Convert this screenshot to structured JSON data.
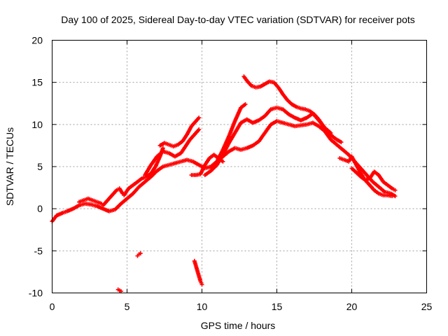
{
  "chart_data": {
    "type": "scatter",
    "title": "Day 100 of 2025, Sidereal Day-to-day VTEC variation (SDTVAR) for receiver pots",
    "xlabel": "GPS time / hours",
    "ylabel": "SDTVAR / TECUs",
    "xlim": [
      0,
      25
    ],
    "ylim": [
      -10,
      20
    ],
    "x_ticks": [
      "0",
      "5",
      "10",
      "15",
      "20",
      "25"
    ],
    "y_ticks": [
      "-10",
      "-5",
      "0",
      "5",
      "10",
      "15",
      "20"
    ],
    "grid": true,
    "marker": "+",
    "color": "#ff0000",
    "series": [
      {
        "name": "track-main-low",
        "points": [
          [
            0.0,
            -1.5
          ],
          [
            0.3,
            -0.8
          ],
          [
            0.7,
            -0.5
          ],
          [
            1.0,
            -0.3
          ],
          [
            1.4,
            0.0
          ],
          [
            1.8,
            0.4
          ],
          [
            2.2,
            0.6
          ],
          [
            2.6,
            0.5
          ],
          [
            3.0,
            0.3
          ],
          [
            3.4,
            0.0
          ],
          [
            3.8,
            -0.3
          ],
          [
            4.2,
            -0.1
          ],
          [
            4.6,
            0.6
          ],
          [
            5.0,
            1.2
          ],
          [
            5.4,
            1.8
          ],
          [
            5.8,
            2.6
          ],
          [
            6.2,
            3.2
          ],
          [
            6.6,
            3.8
          ],
          [
            7.0,
            4.5
          ],
          [
            7.4,
            5.0
          ],
          [
            7.8,
            5.2
          ],
          [
            8.2,
            5.4
          ],
          [
            8.6,
            5.6
          ],
          [
            9.0,
            5.8
          ],
          [
            9.4,
            5.6
          ],
          [
            9.8,
            5.2
          ],
          [
            10.2,
            4.8
          ],
          [
            10.6,
            5.0
          ],
          [
            11.0,
            5.6
          ],
          [
            11.4,
            6.2
          ],
          [
            11.8,
            6.8
          ],
          [
            12.2,
            7.2
          ],
          [
            12.6,
            7.0
          ],
          [
            13.0,
            7.2
          ],
          [
            13.4,
            7.5
          ],
          [
            13.8,
            8.0
          ],
          [
            14.2,
            9.0
          ],
          [
            14.6,
            10.0
          ],
          [
            15.0,
            10.4
          ],
          [
            15.4,
            10.2
          ],
          [
            15.8,
            10.0
          ],
          [
            16.2,
            9.8
          ],
          [
            16.6,
            9.9
          ],
          [
            17.0,
            10.0
          ],
          [
            17.4,
            10.2
          ],
          [
            17.8,
            9.8
          ],
          [
            18.2,
            9.2
          ],
          [
            18.6,
            8.2
          ],
          [
            19.0,
            7.6
          ],
          [
            19.4,
            7.0
          ],
          [
            19.8,
            6.4
          ],
          [
            20.2,
            5.6
          ],
          [
            20.6,
            4.8
          ],
          [
            21.0,
            4.0
          ],
          [
            21.4,
            3.2
          ],
          [
            21.8,
            2.6
          ],
          [
            22.2,
            2.0
          ],
          [
            22.6,
            1.8
          ],
          [
            22.9,
            1.5
          ]
        ]
      },
      {
        "name": "track-main-high",
        "points": [
          [
            12.8,
            15.7
          ],
          [
            13.0,
            15.2
          ],
          [
            13.3,
            14.6
          ],
          [
            13.6,
            14.4
          ],
          [
            13.9,
            14.5
          ],
          [
            14.2,
            14.8
          ],
          [
            14.5,
            15.1
          ],
          [
            14.8,
            15.0
          ],
          [
            15.1,
            14.4
          ],
          [
            15.4,
            13.6
          ],
          [
            15.7,
            12.9
          ],
          [
            16.0,
            12.4
          ],
          [
            16.3,
            12.1
          ],
          [
            16.6,
            11.9
          ],
          [
            16.9,
            11.8
          ],
          [
            17.2,
            11.6
          ],
          [
            17.5,
            11.2
          ],
          [
            17.8,
            10.6
          ],
          [
            18.1,
            9.8
          ],
          [
            18.4,
            9.2
          ],
          [
            18.7,
            8.6
          ],
          [
            19.0,
            8.2
          ],
          [
            19.3,
            7.9
          ]
        ]
      },
      {
        "name": "track-mid",
        "points": [
          [
            10.2,
            4.0
          ],
          [
            10.6,
            4.5
          ],
          [
            11.0,
            5.2
          ],
          [
            11.4,
            6.4
          ],
          [
            11.8,
            7.8
          ],
          [
            12.2,
            9.0
          ],
          [
            12.6,
            10.2
          ],
          [
            13.0,
            10.6
          ],
          [
            13.4,
            10.2
          ],
          [
            13.8,
            10.5
          ],
          [
            14.2,
            11.0
          ],
          [
            14.6,
            11.8
          ],
          [
            15.0,
            12.0
          ],
          [
            15.4,
            11.8
          ],
          [
            15.8,
            11.2
          ],
          [
            16.2,
            10.8
          ],
          [
            16.6,
            10.5
          ],
          [
            17.0,
            10.8
          ],
          [
            17.4,
            11.3
          ],
          [
            17.8,
            10.5
          ],
          [
            18.2,
            9.6
          ],
          [
            18.6,
            9.0
          ]
        ]
      },
      {
        "name": "track-upper-left",
        "points": [
          [
            10.6,
            4.8
          ],
          [
            11.0,
            5.6
          ],
          [
            11.4,
            7.0
          ],
          [
            11.8,
            8.6
          ],
          [
            12.2,
            10.4
          ],
          [
            12.6,
            12.0
          ],
          [
            12.9,
            12.4
          ]
        ]
      },
      {
        "name": "track-steep-a",
        "points": [
          [
            7.2,
            7.5
          ],
          [
            7.5,
            7.8
          ],
          [
            7.8,
            7.6
          ],
          [
            8.1,
            7.4
          ],
          [
            8.4,
            7.6
          ],
          [
            8.7,
            8.0
          ],
          [
            9.0,
            8.8
          ],
          [
            9.3,
            9.8
          ],
          [
            9.6,
            10.4
          ],
          [
            9.8,
            10.8
          ]
        ]
      },
      {
        "name": "track-steep-b",
        "points": [
          [
            6.2,
            4.0
          ],
          [
            6.6,
            5.2
          ],
          [
            7.0,
            6.2
          ],
          [
            7.4,
            6.8
          ],
          [
            7.8,
            6.6
          ],
          [
            8.2,
            6.2
          ],
          [
            8.6,
            6.6
          ],
          [
            8.9,
            7.4
          ],
          [
            9.2,
            8.2
          ],
          [
            9.5,
            8.8
          ],
          [
            9.8,
            9.4
          ]
        ]
      },
      {
        "name": "track-short-a",
        "points": [
          [
            4.8,
            1.6
          ],
          [
            5.1,
            2.4
          ],
          [
            5.4,
            2.8
          ],
          [
            5.7,
            3.2
          ],
          [
            6.0,
            3.6
          ],
          [
            6.3,
            3.8
          ],
          [
            6.6,
            4.2
          ],
          [
            6.9,
            5.0
          ],
          [
            7.2,
            6.2
          ],
          [
            7.4,
            7.2
          ]
        ]
      },
      {
        "name": "track-short-b",
        "points": [
          [
            3.4,
            0.4
          ],
          [
            3.7,
            1.0
          ],
          [
            4.0,
            1.6
          ],
          [
            4.3,
            2.2
          ],
          [
            4.5,
            2.4
          ],
          [
            4.7,
            1.8
          ]
        ]
      },
      {
        "name": "track-short-c",
        "points": [
          [
            1.8,
            0.8
          ],
          [
            2.1,
            1.0
          ],
          [
            2.4,
            1.2
          ],
          [
            2.7,
            1.0
          ],
          [
            3.0,
            0.8
          ],
          [
            3.3,
            0.6
          ]
        ]
      },
      {
        "name": "track-dip",
        "points": [
          [
            9.3,
            4.0
          ],
          [
            9.6,
            4.0
          ],
          [
            9.9,
            4.1
          ],
          [
            10.2,
            5.2
          ],
          [
            10.5,
            6.0
          ],
          [
            10.8,
            6.4
          ],
          [
            11.1,
            6.0
          ],
          [
            11.4,
            5.6
          ]
        ]
      },
      {
        "name": "track-late-a",
        "points": [
          [
            19.2,
            6.0
          ],
          [
            19.5,
            5.8
          ],
          [
            19.8,
            5.6
          ],
          [
            20.0,
            6.2
          ],
          [
            20.3,
            5.2
          ],
          [
            20.6,
            4.2
          ],
          [
            20.9,
            3.4
          ],
          [
            21.2,
            2.8
          ],
          [
            21.5,
            2.2
          ],
          [
            21.8,
            1.8
          ],
          [
            22.1,
            1.6
          ],
          [
            22.4,
            1.6
          ],
          [
            22.7,
            1.5
          ]
        ]
      },
      {
        "name": "track-late-b",
        "points": [
          [
            20.0,
            4.8
          ],
          [
            20.3,
            4.3
          ],
          [
            20.6,
            3.8
          ],
          [
            20.9,
            3.4
          ],
          [
            21.2,
            3.6
          ],
          [
            21.5,
            4.4
          ],
          [
            21.8,
            4.0
          ],
          [
            22.1,
            3.2
          ],
          [
            22.4,
            2.8
          ],
          [
            22.7,
            2.4
          ],
          [
            22.9,
            2.2
          ]
        ]
      },
      {
        "name": "track-outlier-a",
        "points": [
          [
            4.4,
            -9.6
          ],
          [
            4.5,
            -9.7
          ],
          [
            4.6,
            -9.8
          ]
        ]
      },
      {
        "name": "track-outlier-b",
        "points": [
          [
            5.7,
            -5.6
          ],
          [
            5.8,
            -5.4
          ],
          [
            5.9,
            -5.3
          ]
        ]
      },
      {
        "name": "track-outlier-c",
        "points": [
          [
            9.5,
            -6.2
          ],
          [
            9.6,
            -6.8
          ],
          [
            9.7,
            -7.4
          ],
          [
            9.8,
            -8.0
          ],
          [
            9.9,
            -8.6
          ],
          [
            10.0,
            -9.0
          ]
        ]
      }
    ]
  }
}
